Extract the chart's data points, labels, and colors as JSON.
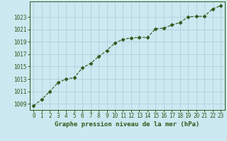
{
  "x": [
    0,
    1,
    2,
    3,
    4,
    5,
    6,
    7,
    8,
    9,
    10,
    11,
    12,
    13,
    14,
    15,
    16,
    17,
    18,
    19,
    20,
    21,
    22,
    23
  ],
  "y": [
    1008.7,
    1009.7,
    1011.0,
    1012.4,
    1013.0,
    1013.2,
    1014.8,
    1015.5,
    1016.6,
    1017.6,
    1018.8,
    1019.4,
    1019.6,
    1019.7,
    1019.7,
    1021.1,
    1021.2,
    1021.7,
    1022.1,
    1023.0,
    1023.1,
    1023.1,
    1024.3,
    1024.8
  ],
  "line_color": "#2d5a1b",
  "marker": "D",
  "marker_size": 2.5,
  "bg_color": "#cce8f0",
  "plot_bg_color": "#cce8f0",
  "grid_color": "#aaccda",
  "xlabel": "Graphe pression niveau de la mer (hPa)",
  "xlabel_color": "#2d5a1b",
  "ylabel_color": "#2d5a1b",
  "tick_color": "#2d5a1b",
  "ylim": [
    1008,
    1025.5
  ],
  "xlim": [
    -0.5,
    23.5
  ],
  "yticks": [
    1009,
    1011,
    1013,
    1015,
    1017,
    1019,
    1021,
    1023
  ],
  "xticks": [
    0,
    1,
    2,
    3,
    4,
    5,
    6,
    7,
    8,
    9,
    10,
    11,
    12,
    13,
    14,
    15,
    16,
    17,
    18,
    19,
    20,
    21,
    22,
    23
  ],
  "linewidth": 0.8,
  "xlabel_fontsize": 6.5,
  "tick_fontsize": 5.5
}
